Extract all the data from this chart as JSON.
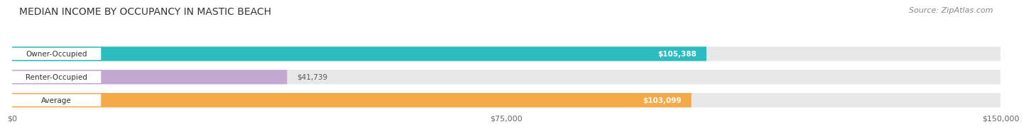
{
  "title": "MEDIAN INCOME BY OCCUPANCY IN MASTIC BEACH",
  "source": "Source: ZipAtlas.com",
  "categories": [
    "Owner-Occupied",
    "Renter-Occupied",
    "Average"
  ],
  "values": [
    105388,
    41739,
    103099
  ],
  "bar_colors": [
    "#2bbcbf",
    "#c4a8d4",
    "#f5a947"
  ],
  "bar_labels": [
    "$105,388",
    "$41,739",
    "$103,099"
  ],
  "label_inside": [
    true,
    false,
    true
  ],
  "xlim": [
    0,
    150000
  ],
  "xticks": [
    0,
    75000,
    150000
  ],
  "xtick_labels": [
    "$0",
    "$75,000",
    "$150,000"
  ],
  "background_color": "#ffffff",
  "bar_bg_color": "#e8e8e8",
  "title_fontsize": 10,
  "source_fontsize": 8,
  "label_fontsize": 7.5,
  "tick_fontsize": 8,
  "cat_label_fontsize": 7.5
}
